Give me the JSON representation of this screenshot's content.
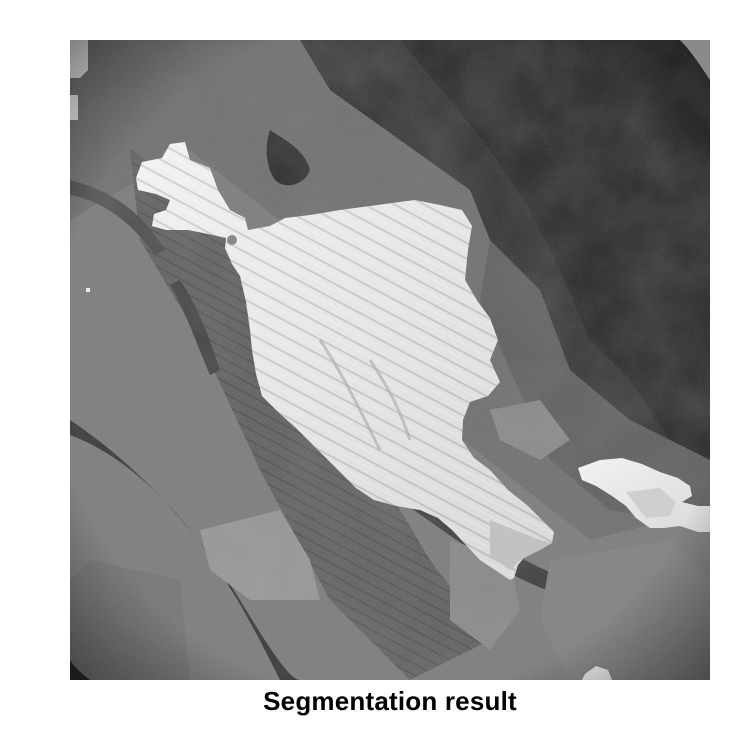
{
  "figure": {
    "caption": "Segmentation result"
  }
}
